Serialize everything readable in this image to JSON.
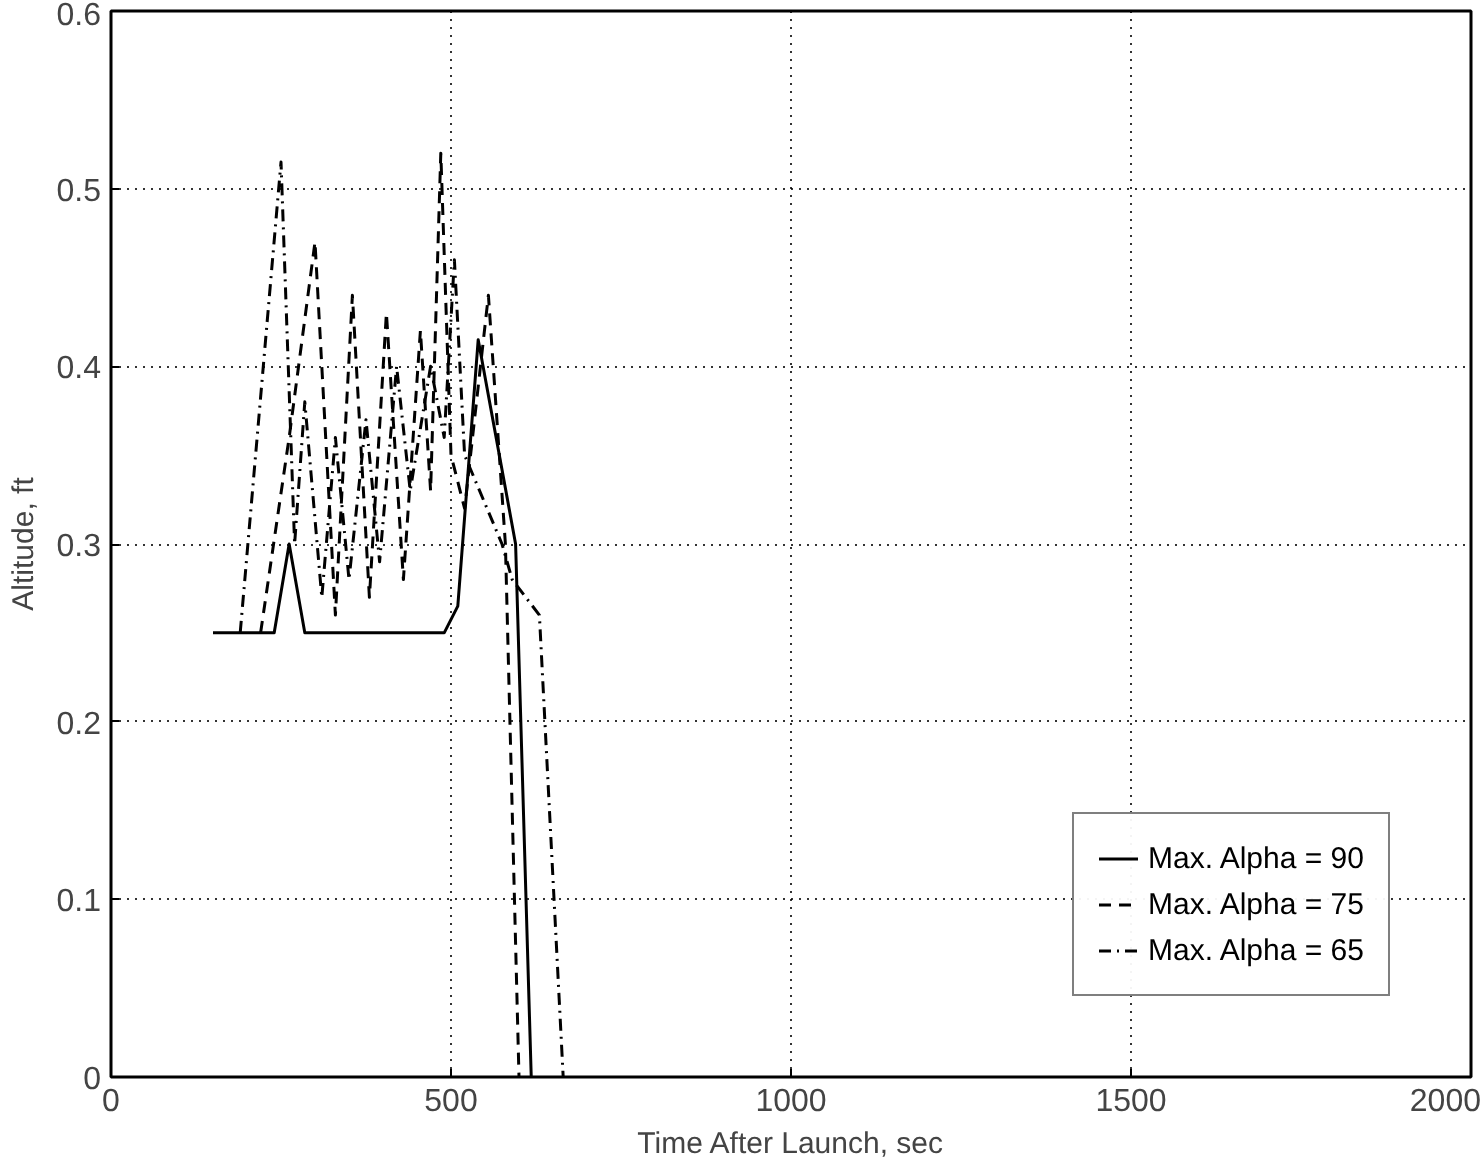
{
  "chart_data": {
    "type": "line",
    "xlabel": "Time After Launch, sec",
    "ylabel": "Altitude, ft",
    "xlim": [
      0,
      2000
    ],
    "xticks": [
      0,
      500,
      1000,
      1500,
      2000
    ],
    "ylim": [
      0,
      0.6
    ],
    "yticks": [
      0,
      0.1,
      0.2,
      0.3,
      0.4,
      0.5,
      0.6
    ],
    "grid": true,
    "legend": "bottom right",
    "series": [
      {
        "name": "Max. Alpha = 90",
        "color": "#000000",
        "line_style": "solid",
        "x": [
          150,
          240,
          262,
          285,
          490,
          510,
          540,
          595,
          618
        ],
        "values": [
          0.25,
          0.25,
          0.3,
          0.25,
          0.25,
          0.265,
          0.415,
          0.3,
          0
        ]
      },
      {
        "name": "Max. Alpha = 75",
        "color": "#000000",
        "line_style": "dashed",
        "x": [
          220,
          262,
          300,
          330,
          355,
          380,
          405,
          430,
          455,
          470,
          485,
          500,
          520,
          555,
          580,
          600
        ],
        "values": [
          0.25,
          0.36,
          0.47,
          0.26,
          0.44,
          0.27,
          0.43,
          0.28,
          0.42,
          0.33,
          0.52,
          0.35,
          0.32,
          0.44,
          0.3,
          0
        ]
      },
      {
        "name": "Max. Alpha = 65",
        "color": "#000000",
        "line_style": "dashdot",
        "x": [
          190,
          250,
          270,
          285,
          310,
          330,
          350,
          375,
          395,
          420,
          440,
          470,
          490,
          505,
          520,
          575,
          590,
          630,
          665
        ],
        "values": [
          0.25,
          0.515,
          0.3,
          0.38,
          0.27,
          0.36,
          0.28,
          0.37,
          0.29,
          0.4,
          0.33,
          0.4,
          0.36,
          0.46,
          0.35,
          0.3,
          0.28,
          0.26,
          0
        ]
      }
    ]
  }
}
